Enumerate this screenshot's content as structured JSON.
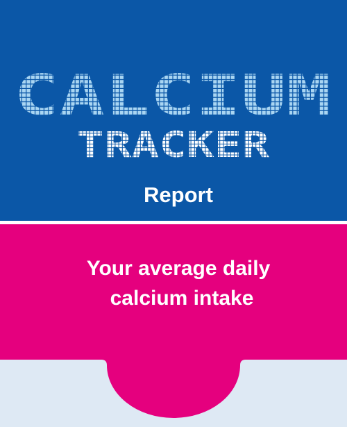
{
  "header": {
    "title": "CALCIUM",
    "subtitle": "TRACKER",
    "label": "Report"
  },
  "prompt": {
    "lines": [
      "Your average daily",
      "calcium intake"
    ]
  }
}
